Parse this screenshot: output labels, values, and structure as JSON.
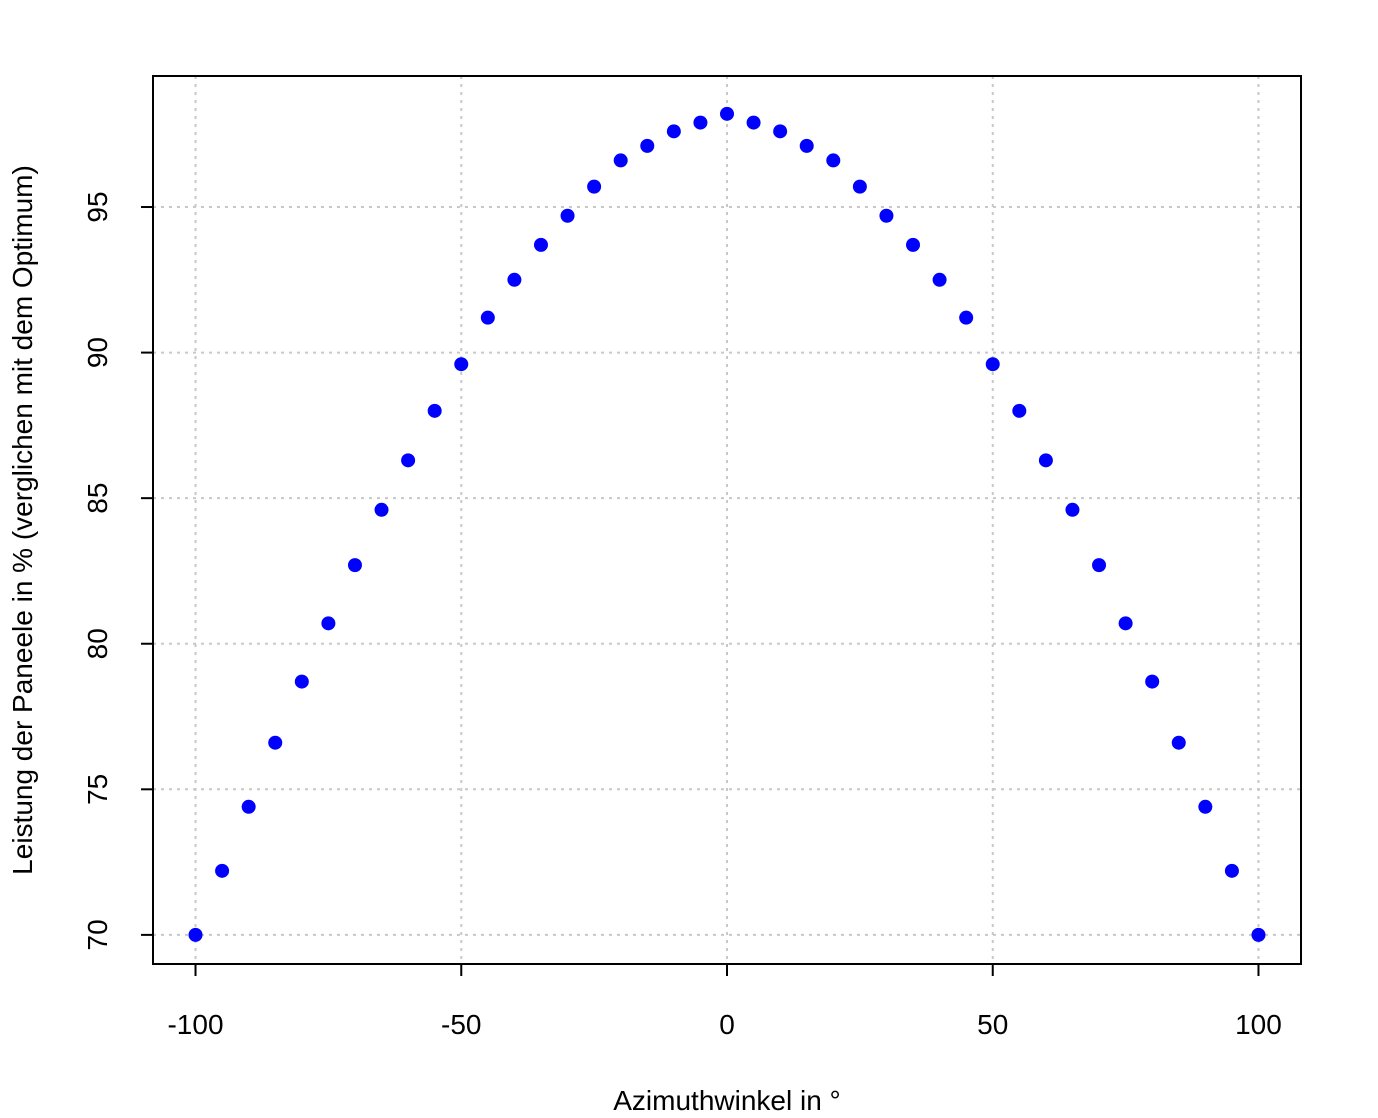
{
  "chart_data": {
    "type": "scatter",
    "title": "",
    "xlabel": "Azimuthwinkel in °",
    "ylabel": "Leistung der Paneele in % (verglichen mit dem Optimum)",
    "xlim": [
      -108,
      108
    ],
    "ylim": [
      69,
      99.5
    ],
    "x_ticks": [
      -100,
      -50,
      0,
      50,
      100
    ],
    "y_ticks": [
      70,
      75,
      80,
      85,
      90,
      95
    ],
    "x_tick_labels": [
      "-100",
      "-50",
      "0",
      "50",
      "100"
    ],
    "y_tick_labels": [
      "70",
      "75",
      "80",
      "85",
      "90",
      "95"
    ],
    "grid": true,
    "grid_color": "#c8c8c8",
    "point_color": "#0000ff",
    "series": [
      {
        "x": [
          -100,
          -95,
          -90,
          -85,
          -80,
          -75,
          -70,
          -65,
          -60,
          -55,
          -50,
          -45,
          -40,
          -35,
          -30,
          -25,
          -20,
          -15,
          -10,
          -5,
          0,
          5,
          10,
          15,
          20,
          25,
          30,
          35,
          40,
          45,
          50,
          55,
          60,
          65,
          70,
          75,
          80,
          85,
          90,
          95,
          100
        ],
        "y": [
          70.0,
          72.2,
          74.4,
          76.6,
          78.7,
          80.7,
          82.7,
          84.6,
          86.3,
          88.0,
          89.6,
          91.2,
          92.5,
          93.7,
          94.7,
          95.7,
          96.6,
          97.1,
          97.6,
          97.9,
          98.2,
          97.9,
          97.6,
          97.1,
          96.6,
          95.7,
          94.7,
          93.7,
          92.5,
          91.2,
          89.6,
          88.0,
          86.3,
          84.6,
          82.7,
          80.7,
          78.7,
          76.6,
          74.4,
          72.2,
          70.0
        ]
      }
    ]
  }
}
